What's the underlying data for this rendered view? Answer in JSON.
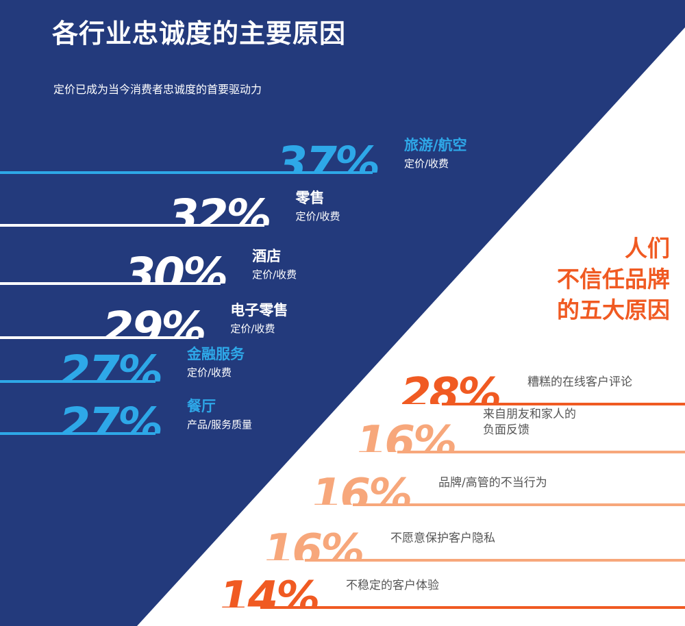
{
  "title": "各行业忠诚度的主要原因",
  "subtitle": "定价已成为当今消费者忠诚度的首要驱动力",
  "right_title": [
    "人们",
    "不信任品牌",
    "的五大原因"
  ],
  "colors": {
    "navy": "#233a7c",
    "light_blue": "#2ea8e8",
    "white": "#ffffff",
    "orange": "#f05a22",
    "light_orange": "#f7a77b",
    "gray_text": "#555555"
  },
  "chart_data": [
    {
      "type": "bar",
      "title": "各行业忠诚度的主要原因",
      "subtitle": "定价已成为当今消费者忠诚度的首要驱动力",
      "unit": "%",
      "categories": [
        "旅游/航空",
        "零售",
        "酒店",
        "电子零售",
        "金融服务",
        "餐厅"
      ],
      "sublabels": [
        "定价/收费",
        "定价/收费",
        "定价/收费",
        "定价/收费",
        "定价/收费",
        "产品/服务质量"
      ],
      "values": [
        37,
        32,
        30,
        29,
        27,
        27
      ],
      "colors": [
        "#2ea8e8",
        "#ffffff",
        "#ffffff",
        "#ffffff",
        "#2ea8e8",
        "#2ea8e8"
      ]
    },
    {
      "type": "bar",
      "title": "人们不信任品牌的五大原因",
      "unit": "%",
      "categories": [
        "糟糕的在线客户评论",
        "来自朋友和家人的\n负面反馈",
        "品牌/高管的不当行为",
        "不愿意保护客户隐私",
        "不稳定的客户体验"
      ],
      "values": [
        28,
        16,
        16,
        16,
        14
      ],
      "colors": [
        "#f05a22",
        "#f7a77b",
        "#f7a77b",
        "#f7a77b",
        "#f05a22"
      ]
    }
  ]
}
